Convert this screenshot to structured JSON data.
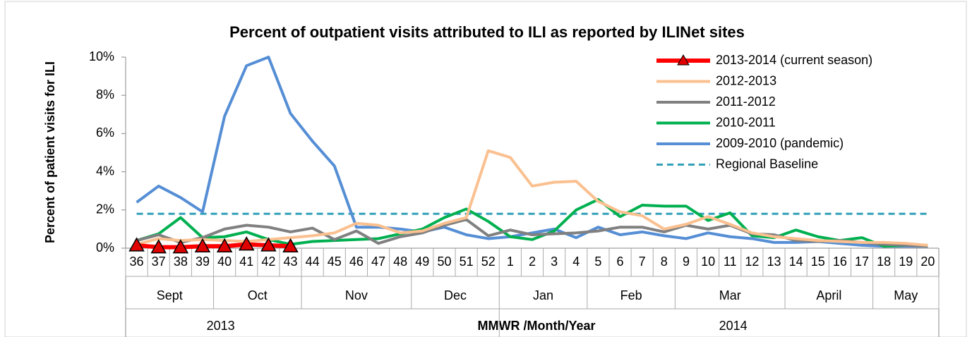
{
  "chart_data": {
    "type": "line",
    "title": "Percent of outpatient visits attributed to ILI as reported by ILINet sites",
    "y_label": "Percent of patient visits for ILI",
    "x_label": "MMWR /Month/Year",
    "categories": [
      "36",
      "37",
      "38",
      "39",
      "40",
      "41",
      "42",
      "43",
      "44",
      "45",
      "46",
      "47",
      "48",
      "49",
      "50",
      "51",
      "52",
      "1",
      "2",
      "3",
      "4",
      "5",
      "6",
      "7",
      "8",
      "9",
      "10",
      "11",
      "12",
      "13",
      "14",
      "15",
      "16",
      "17",
      "18",
      "19",
      "20"
    ],
    "month_groups": [
      {
        "label": "Sept",
        "from": "36",
        "to": "39"
      },
      {
        "label": "Oct",
        "from": "40",
        "to": "43"
      },
      {
        "label": "Nov",
        "from": "44",
        "to": "48"
      },
      {
        "label": "Dec",
        "from": "49",
        "to": "52"
      },
      {
        "label": "Jan",
        "from": "1",
        "to": "4"
      },
      {
        "label": "Feb",
        "from": "5",
        "to": "8"
      },
      {
        "label": "Mar",
        "from": "9",
        "to": "13"
      },
      {
        "label": "April",
        "from": "14",
        "to": "17"
      },
      {
        "label": "May",
        "from": "18",
        "to": "20"
      }
    ],
    "year_groups": [
      {
        "label": "2013",
        "from": "36",
        "to": "52"
      },
      {
        "label": "2014",
        "from": "1",
        "to": "20"
      }
    ],
    "ylim": [
      0,
      10
    ],
    "yticks": [
      {
        "value": 0,
        "label": "0%"
      },
      {
        "value": 2,
        "label": "2%"
      },
      {
        "value": 4,
        "label": "4%"
      },
      {
        "value": 6,
        "label": "6%"
      },
      {
        "value": 8,
        "label": "8%"
      },
      {
        "value": 10,
        "label": "10%"
      }
    ],
    "legend": "top-right",
    "series": [
      {
        "name": "2013-2014 (current season)",
        "color": "#ff0000",
        "marker": "triangle",
        "values": [
          0.15,
          0.05,
          0.05,
          0.1,
          0.1,
          0.2,
          0.15,
          0.1,
          null,
          null,
          null,
          null,
          null,
          null,
          null,
          null,
          null,
          null,
          null,
          null,
          null,
          null,
          null,
          null,
          null,
          null,
          null,
          null,
          null,
          null,
          null,
          null,
          null,
          null,
          null,
          null,
          null
        ]
      },
      {
        "name": "2012-2013",
        "color": "#fac090",
        "values": [
          0.2,
          0.5,
          0.4,
          0.45,
          0.4,
          0.35,
          0.45,
          0.55,
          0.65,
          0.8,
          1.3,
          1.2,
          0.8,
          0.9,
          1.3,
          1.6,
          5.1,
          4.75,
          3.25,
          3.45,
          3.5,
          2.45,
          1.9,
          1.7,
          1.0,
          1.25,
          1.65,
          1.25,
          0.8,
          0.6,
          0.5,
          0.4,
          0.35,
          0.3,
          0.3,
          0.25,
          0.15
        ]
      },
      {
        "name": "2011-2012",
        "color": "#808080",
        "values": [
          0.4,
          0.7,
          0.3,
          0.55,
          1.0,
          1.2,
          1.1,
          0.85,
          1.05,
          0.45,
          0.9,
          0.25,
          0.6,
          0.8,
          1.2,
          1.5,
          0.65,
          0.95,
          0.7,
          0.75,
          0.8,
          0.9,
          1.1,
          1.1,
          0.85,
          1.2,
          1.0,
          1.2,
          0.75,
          0.7,
          0.4,
          0.35,
          0.4,
          0.3,
          0.2,
          0.15,
          0.1
        ]
      },
      {
        "name": "2010-2011",
        "color": "#00b050",
        "values": [
          0.4,
          0.75,
          1.6,
          0.55,
          0.6,
          0.85,
          0.45,
          0.2,
          0.35,
          0.4,
          0.45,
          0.5,
          0.75,
          1.0,
          1.6,
          2.05,
          1.4,
          0.6,
          0.45,
          0.9,
          2.0,
          2.55,
          1.65,
          2.25,
          2.2,
          2.2,
          1.45,
          1.85,
          0.65,
          0.55,
          0.95,
          0.6,
          0.4,
          0.55,
          0.1,
          0.15,
          0.15
        ]
      },
      {
        "name": "2009-2010 (pandemic)",
        "color": "#558ed5",
        "values": [
          2.4,
          3.25,
          2.65,
          1.9,
          6.9,
          9.55,
          10,
          7.05,
          5.6,
          4.3,
          1.1,
          1.1,
          1.0,
          0.85,
          1.1,
          0.7,
          0.5,
          0.6,
          0.8,
          1.0,
          0.55,
          1.1,
          0.7,
          0.85,
          0.65,
          0.5,
          0.8,
          0.6,
          0.5,
          0.3,
          0.3,
          0.35,
          0.25,
          0.15,
          0.1,
          0.1,
          0.1
        ]
      },
      {
        "name": "Regional Baseline",
        "color": "#31a0b8",
        "dashed": true,
        "values": [
          1.8,
          1.8,
          1.8,
          1.8,
          1.8,
          1.8,
          1.8,
          1.8,
          1.8,
          1.8,
          1.8,
          1.8,
          1.8,
          1.8,
          1.8,
          1.8,
          1.8,
          1.8,
          1.8,
          1.8,
          1.8,
          1.8,
          1.8,
          1.8,
          1.8,
          1.8,
          1.8,
          1.8,
          1.8,
          1.8,
          1.8,
          1.8,
          1.8,
          1.8,
          1.8,
          1.8,
          1.8
        ]
      }
    ]
  }
}
